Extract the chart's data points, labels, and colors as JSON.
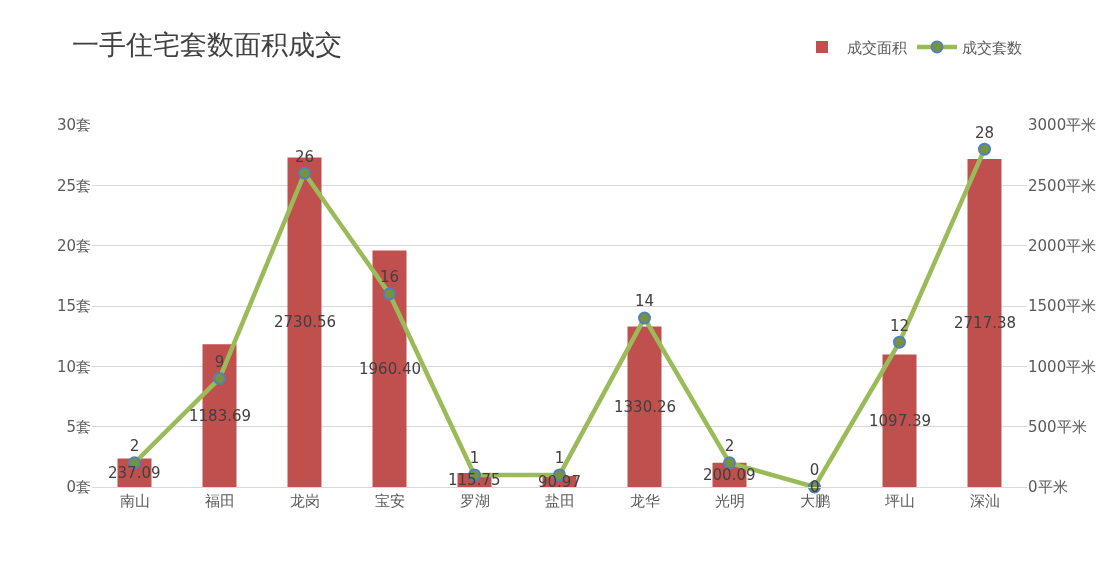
{
  "chart_data": {
    "type": "bar",
    "title": "一手住宅套数面积成交",
    "categories": [
      "南山",
      "福田",
      "龙岗",
      "宝安",
      "罗湖",
      "盐田",
      "龙华",
      "光明",
      "大鹏",
      "坪山",
      "深汕"
    ],
    "series": [
      {
        "name": "成交面积",
        "axis": "y2",
        "color": "#c0504d",
        "values": [
          237.09,
          1183.69,
          2730.56,
          1960.4,
          115.75,
          90.97,
          1330.26,
          200.09,
          0,
          1097.39,
          2717.38
        ],
        "value_labels": [
          "237.09",
          "1183.69",
          "2730.56",
          "1960.40",
          "115.75",
          "90.97",
          "1330.26",
          "200.09",
          "0",
          "1097.39",
          "2717.38"
        ]
      },
      {
        "name": "成交套数",
        "type": "line",
        "color": "#9bbb59",
        "values": [
          2,
          9,
          26,
          16,
          1,
          1,
          14,
          2,
          0,
          12,
          28
        ],
        "value_labels": [
          "2",
          "9",
          "26",
          "16",
          "1",
          "1",
          "14",
          "2",
          "0",
          "12",
          "28"
        ]
      }
    ],
    "ylim": [
      0,
      30
    ],
    "yticks": [
      {
        "value": 0,
        "label": "0套"
      },
      {
        "value": 5,
        "label": "5套"
      },
      {
        "value": 10,
        "label": "10套"
      },
      {
        "value": 15,
        "label": "15套"
      },
      {
        "value": 20,
        "label": "20套"
      },
      {
        "value": 25,
        "label": "25套"
      },
      {
        "value": 30,
        "label": "30套"
      }
    ],
    "y2lim": [
      0,
      3000
    ],
    "y2ticks": [
      {
        "value": 0,
        "label": "0平米"
      },
      {
        "value": 500,
        "label": "500平米"
      },
      {
        "value": 1000,
        "label": "1000平米"
      },
      {
        "value": 1500,
        "label": "1500平米"
      },
      {
        "value": 2000,
        "label": "2000平米"
      },
      {
        "value": 2500,
        "label": "2500平米"
      },
      {
        "value": 3000,
        "label": "3000平米"
      }
    ],
    "grid": "y",
    "legend": "top right",
    "marker": "circle",
    "line_style": "solid"
  }
}
